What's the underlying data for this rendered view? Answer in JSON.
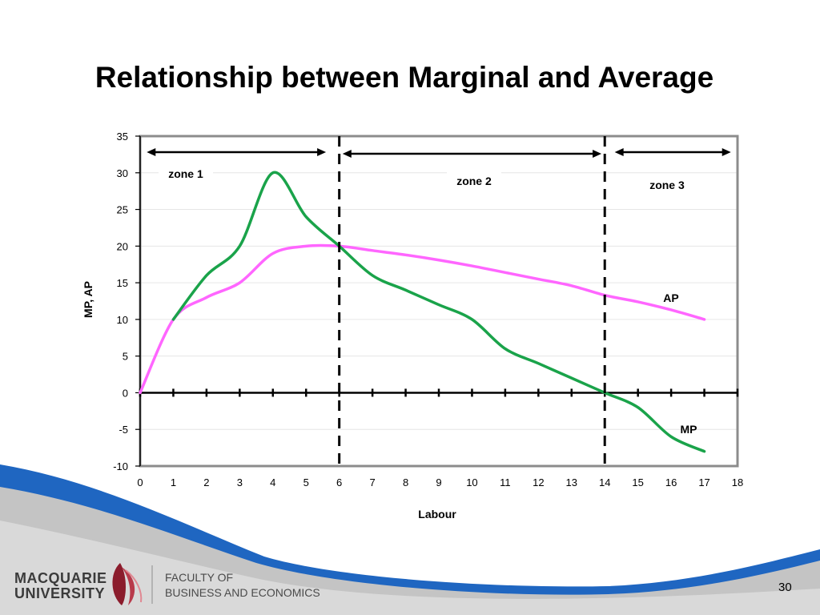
{
  "slide": {
    "title": "Relationship between Marginal and Average",
    "page_number": "30"
  },
  "logo": {
    "university_line1": "MACQUARIE",
    "university_line2": "UNIVERSITY",
    "faculty_line1": "FACULTY OF",
    "faculty_line2": "BUSINESS AND ECONOMICS"
  },
  "colors": {
    "mp": "#1aa34a",
    "ap": "#ff66ff",
    "wave_blue": "#1f66c1",
    "wave_grey": "#bcbcbc"
  },
  "chart_data": {
    "type": "line",
    "title": "",
    "xlabel": "Labour",
    "ylabel": "MP, AP",
    "xlim": [
      0,
      18
    ],
    "ylim": [
      -10,
      35
    ],
    "x_ticks": [
      "0",
      "1",
      "2",
      "3",
      "4",
      "5",
      "6",
      "7",
      "8",
      "9",
      "10",
      "11",
      "12",
      "13",
      "14",
      "15",
      "16",
      "17",
      "18"
    ],
    "y_ticks": [
      "35",
      "30",
      "25",
      "20",
      "15",
      "10",
      "5",
      "0",
      "-5",
      "-10"
    ],
    "grid": true,
    "series": [
      {
        "name": "MP",
        "color": "#1aa34a",
        "points": [
          [
            1,
            10
          ],
          [
            2,
            16
          ],
          [
            3,
            20
          ],
          [
            4,
            30
          ],
          [
            5,
            24
          ],
          [
            6,
            20
          ],
          [
            7,
            16
          ],
          [
            8,
            14
          ],
          [
            9,
            12
          ],
          [
            10,
            10
          ],
          [
            11,
            6
          ],
          [
            12,
            4
          ],
          [
            13,
            2
          ],
          [
            14,
            0
          ],
          [
            15,
            -2
          ],
          [
            16,
            -6
          ],
          [
            17,
            -8
          ]
        ]
      },
      {
        "name": "AP",
        "color": "#ff66ff",
        "points": [
          [
            0,
            0
          ],
          [
            1,
            10
          ],
          [
            2,
            13
          ],
          [
            3,
            15
          ],
          [
            4,
            19
          ],
          [
            5,
            20
          ],
          [
            6,
            20
          ],
          [
            7,
            19.4
          ],
          [
            8,
            18.8
          ],
          [
            9,
            18.1
          ],
          [
            10,
            17.3
          ],
          [
            11,
            16.4
          ],
          [
            12,
            15.5
          ],
          [
            13,
            14.6
          ],
          [
            14,
            13.3
          ],
          [
            15,
            12.4
          ],
          [
            16,
            11.3
          ],
          [
            17,
            10
          ]
        ]
      }
    ],
    "zone_dividers": [
      6,
      14
    ],
    "zones": [
      {
        "label": "zone 1",
        "arrow_from": 0.2,
        "arrow_to": 5.6
      },
      {
        "label": "zone 2",
        "arrow_from": 6.1,
        "arrow_to": 13.9
      },
      {
        "label": "zone 3",
        "arrow_from": 14.3,
        "arrow_to": 17.8
      }
    ],
    "annotations": [
      {
        "text": "AP"
      },
      {
        "text": "MP"
      }
    ]
  }
}
